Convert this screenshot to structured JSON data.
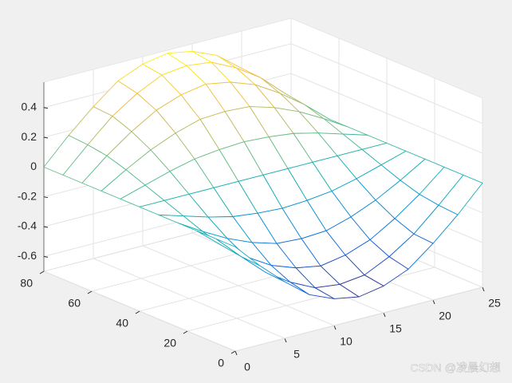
{
  "chart_data": {
    "type": "mesh",
    "x": [
      0,
      2.5,
      5,
      7.5,
      10,
      12.5,
      15,
      17.5,
      20,
      22.5,
      25
    ],
    "y": [
      0,
      8,
      16,
      24,
      32,
      40,
      48,
      56,
      64,
      72,
      80
    ],
    "z": [
      [
        0,
        -0.17,
        -0.32,
        -0.45,
        -0.52,
        -0.55,
        -0.52,
        -0.45,
        -0.32,
        -0.17,
        0
      ],
      [
        0,
        -0.16,
        -0.31,
        -0.42,
        -0.5,
        -0.52,
        -0.5,
        -0.42,
        -0.31,
        -0.16,
        0
      ],
      [
        0,
        -0.14,
        -0.26,
        -0.36,
        -0.42,
        -0.45,
        -0.42,
        -0.36,
        -0.26,
        -0.14,
        0
      ],
      [
        0,
        -0.1,
        -0.19,
        -0.26,
        -0.31,
        -0.32,
        -0.31,
        -0.26,
        -0.19,
        -0.1,
        0
      ],
      [
        0,
        -0.05,
        -0.1,
        -0.14,
        -0.16,
        -0.17,
        -0.16,
        -0.14,
        -0.1,
        -0.05,
        0
      ],
      [
        0,
        0,
        0,
        0,
        0,
        0,
        0,
        0,
        0,
        0,
        0
      ],
      [
        0,
        0.05,
        0.1,
        0.14,
        0.16,
        0.17,
        0.16,
        0.14,
        0.1,
        0.05,
        0
      ],
      [
        0,
        0.1,
        0.19,
        0.26,
        0.31,
        0.32,
        0.31,
        0.26,
        0.19,
        0.1,
        0
      ],
      [
        0,
        0.14,
        0.26,
        0.36,
        0.42,
        0.45,
        0.42,
        0.36,
        0.26,
        0.14,
        0
      ],
      [
        0,
        0.16,
        0.31,
        0.42,
        0.5,
        0.52,
        0.5,
        0.42,
        0.31,
        0.16,
        0
      ],
      [
        0,
        0.17,
        0.32,
        0.45,
        0.52,
        0.55,
        0.52,
        0.45,
        0.32,
        0.17,
        0
      ]
    ],
    "xlim": [
      0,
      25
    ],
    "xticks": [
      0,
      5,
      10,
      15,
      20,
      25
    ],
    "ylim": [
      0,
      80
    ],
    "yticks": [
      0,
      20,
      40,
      60,
      80
    ],
    "zlim": [
      -0.7,
      0.57
    ],
    "zticks": [
      -0.6,
      -0.4,
      -0.2,
      0,
      0.2,
      0.4
    ],
    "grid": true,
    "colormap": [
      "#352a87",
      "#0f5cdd",
      "#127dd8",
      "#079ccf",
      "#15b1b4",
      "#59bd8c",
      "#a5be6b",
      "#e1b952",
      "#fcce2e",
      "#f9fb0e"
    ],
    "watermark": "CSDN @凌晨幻想"
  }
}
